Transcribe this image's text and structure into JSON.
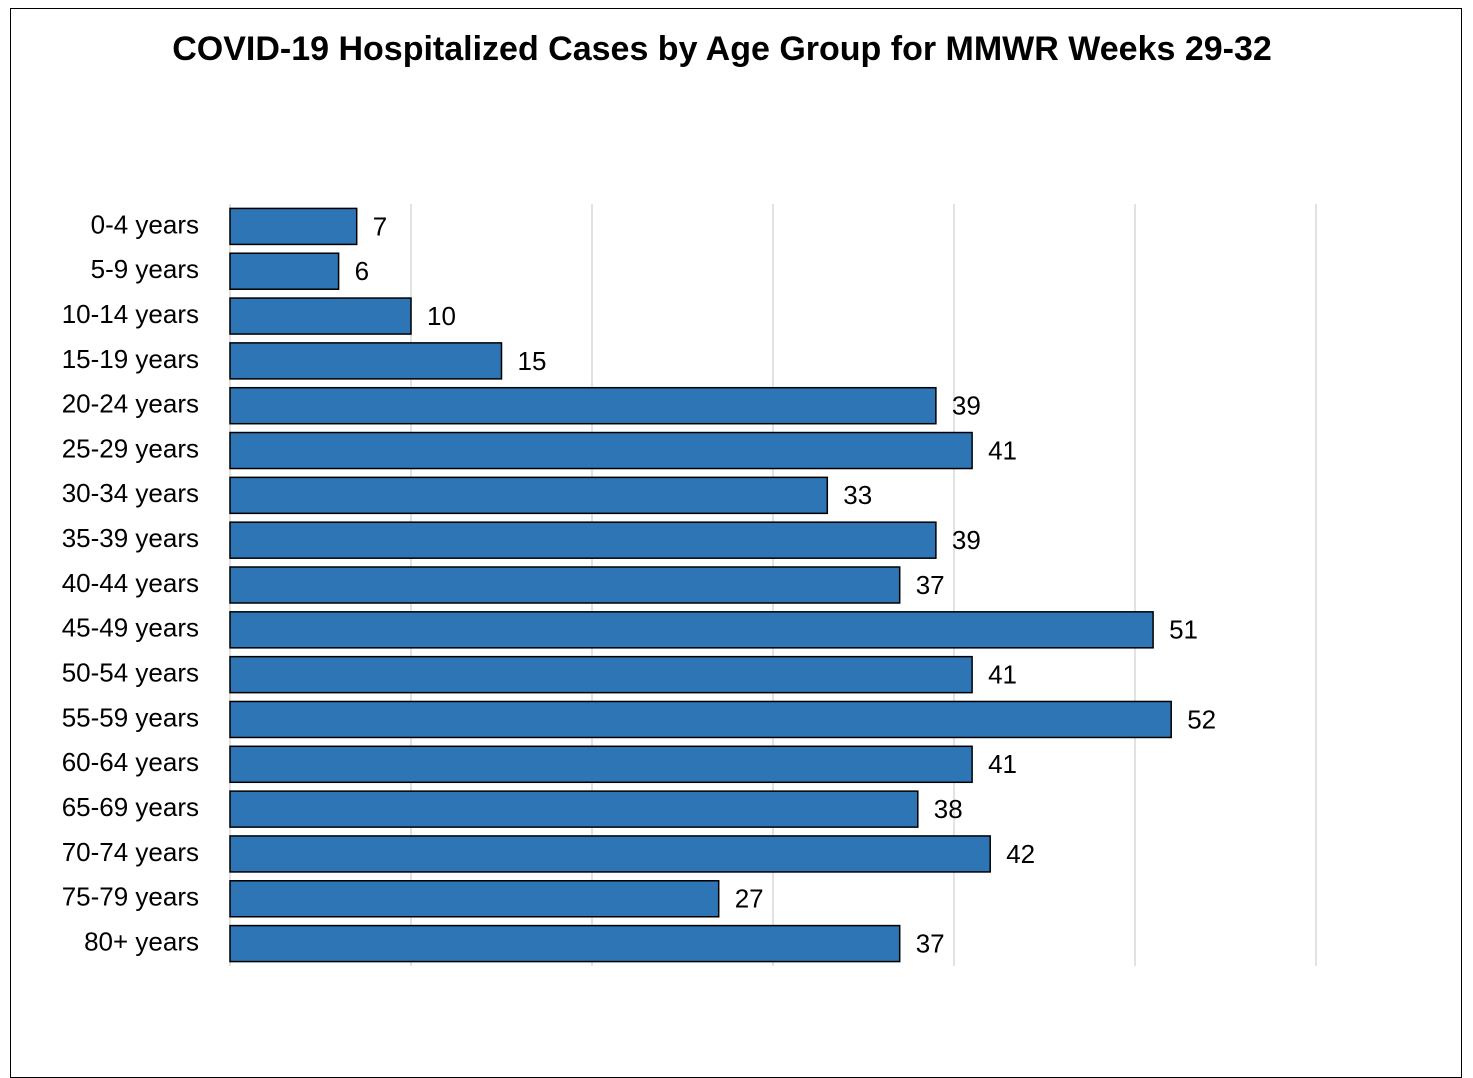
{
  "chart_data": {
    "type": "barh",
    "title": "COVID-19 Hospitalized Cases by Age Group for MMWR Weeks 29-32",
    "categories": [
      "0-4 years",
      "5-9 years",
      "10-14 years",
      "15-19 years",
      "20-24 years",
      "25-29 years",
      "30-34 years",
      "35-39 years",
      "40-44 years",
      "45-49 years",
      "50-54 years",
      "55-59 years",
      "60-64 years",
      "65-69 years",
      "70-74 years",
      "75-79 years",
      "80+ years"
    ],
    "values": [
      7,
      6,
      10,
      15,
      39,
      41,
      33,
      39,
      37,
      51,
      41,
      52,
      41,
      38,
      42,
      27,
      37
    ],
    "color": "#2e75b6",
    "xlim": [
      0,
      60
    ],
    "xticks": [
      0,
      10,
      20,
      30,
      40,
      50,
      60
    ],
    "grid": true
  }
}
